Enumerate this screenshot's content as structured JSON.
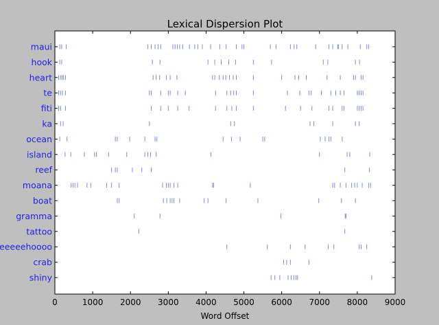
{
  "chart_data": {
    "type": "scatter",
    "title": "Lexical Dispersion Plot",
    "xlabel": "Word Offset",
    "ylabel": "",
    "xlim": [
      0,
      9000
    ],
    "xticks": [
      0,
      1000,
      2000,
      3000,
      4000,
      5000,
      6000,
      7000,
      8000,
      9000
    ],
    "grid": false,
    "marker": "|",
    "marker_color": "#7a86e8",
    "label_color": "#1f1fe6",
    "categories": [
      "maui",
      "hook",
      "heart",
      "te",
      "fiti",
      "ka",
      "ocean",
      "island",
      "reef",
      "moana",
      "boat",
      "gramma",
      "tattoo",
      "heeeeehoooo",
      "crab",
      "shiny"
    ],
    "series": [
      {
        "name": "maui",
        "x": [
          130,
          180,
          300,
          2460,
          2550,
          2650,
          2730,
          2800,
          3120,
          3180,
          3240,
          3300,
          3380,
          3560,
          3700,
          3780,
          3900,
          4120,
          4360,
          4530,
          4800,
          4950,
          5000,
          5700,
          5850,
          6230,
          6330,
          6400,
          6900,
          7250,
          7350,
          7480,
          7500,
          7600,
          7750,
          8080,
          8250,
          8300
        ]
      },
      {
        "name": "hook",
        "x": [
          130,
          180,
          2580,
          2780,
          4050,
          4230,
          4400,
          4600,
          4780,
          5250,
          5730,
          7100,
          7220,
          7950,
          8060
        ]
      },
      {
        "name": "heart",
        "x": [
          100,
          150,
          190,
          230,
          280,
          2600,
          2680,
          2770,
          2950,
          3050,
          3230,
          4170,
          4230,
          4350,
          4450,
          4520,
          4620,
          4720,
          4800,
          5250,
          6000,
          6350,
          6450,
          6650,
          7200,
          7550,
          7900,
          7950,
          8100,
          8150
        ]
      },
      {
        "name": "te",
        "x": [
          100,
          150,
          200,
          280,
          2500,
          2550,
          2800,
          3000,
          3050,
          3250,
          3450,
          4250,
          4550,
          4650,
          4730,
          4800,
          5250,
          6150,
          6480,
          6720,
          6780,
          7050,
          7300,
          7430,
          7550,
          7650,
          8000,
          8050,
          8100,
          8150
        ]
      },
      {
        "name": "fiti",
        "x": [
          100,
          150,
          280,
          2550,
          2800,
          3000,
          3250,
          3550,
          4250,
          4550,
          4680,
          4800,
          5250,
          6100,
          6500,
          6800,
          7250,
          7350,
          7600,
          7650,
          8000,
          8050,
          8100,
          8150
        ]
      },
      {
        "name": "ka",
        "x": [
          150,
          220,
          2500,
          4650,
          4750,
          6750,
          6850,
          7350,
          7950,
          8050
        ]
      },
      {
        "name": "ocean",
        "x": [
          130,
          320,
          1600,
          1650,
          1980,
          2380,
          2650,
          2700,
          4450,
          4670,
          4900,
          5500,
          5550,
          7020,
          7150,
          7250,
          7300,
          7600
        ]
      },
      {
        "name": "island",
        "x": [
          270,
          420,
          780,
          1050,
          1100,
          1420,
          1900,
          2380,
          2460,
          2530,
          2680,
          4130,
          7000,
          7730,
          7800,
          8330
        ]
      },
      {
        "name": "reef",
        "x": [
          1500,
          1600,
          1650,
          2050,
          2300,
          2550,
          7670,
          8320
        ]
      },
      {
        "name": "moana",
        "x": [
          430,
          480,
          530,
          600,
          850,
          950,
          1370,
          1500,
          1700,
          2850,
          2950,
          3000,
          3050,
          3150,
          3250,
          4170,
          4200,
          5170,
          7350,
          7400,
          7550,
          7700,
          7850,
          7930,
          8000,
          8130,
          8300,
          8350
        ]
      },
      {
        "name": "boat",
        "x": [
          1650,
          1700,
          2870,
          2960,
          3050,
          3100,
          3150,
          3300,
          3950,
          4050,
          4530,
          5370,
          6980,
          7580,
          7950
        ]
      },
      {
        "name": "gramma",
        "x": [
          2100,
          2780,
          5980,
          7680,
          7700
        ]
      },
      {
        "name": "tattoo",
        "x": [
          2220,
          7670
        ]
      },
      {
        "name": "heeeeehoooo",
        "x": [
          4550,
          5620,
          6230,
          6620,
          7230,
          7380,
          8050,
          8100,
          8250
        ]
      },
      {
        "name": "crab",
        "x": [
          6050,
          6130,
          6230,
          6720
        ]
      },
      {
        "name": "shiny",
        "x": [
          5720,
          5820,
          5950,
          6170,
          6250,
          6320,
          6380,
          6420,
          8380
        ]
      }
    ]
  }
}
